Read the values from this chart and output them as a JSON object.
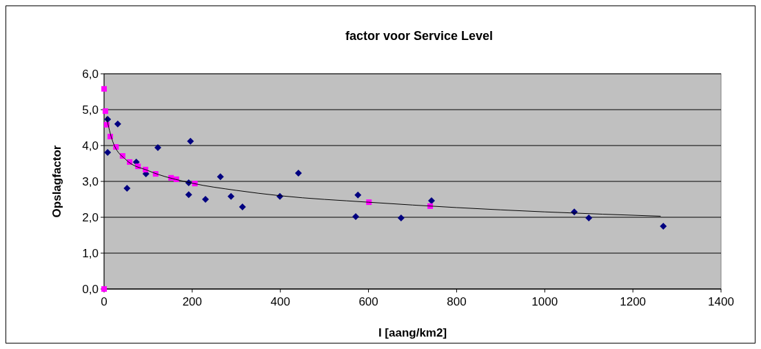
{
  "chart_data": {
    "type": "scatter",
    "title": "factor voor Service Level",
    "xlabel": "I [aang/km2]",
    "ylabel": "Opslagfactor",
    "xlim": [
      0,
      1400
    ],
    "xticks": [
      0,
      200,
      400,
      600,
      800,
      1000,
      1200,
      1400
    ],
    "ylim": [
      0,
      6
    ],
    "yticks": [
      {
        "value": 0,
        "label": "0,0"
      },
      {
        "value": 1,
        "label": "1,0"
      },
      {
        "value": 2,
        "label": "2,0"
      },
      {
        "value": 3,
        "label": "3,0"
      },
      {
        "value": 4,
        "label": "4,0"
      },
      {
        "value": 5,
        "label": "5,0"
      },
      {
        "value": 6,
        "label": "6,0"
      }
    ],
    "grid": "y",
    "series": [
      {
        "color": "#000080",
        "marker": "diamond",
        "x": [
          8,
          8,
          31,
          52,
          73,
          95,
          122,
          196,
          192,
          192,
          230,
          264,
          288,
          314,
          399,
          441,
          576,
          571,
          674,
          743,
          1067,
          1100,
          1269
        ],
        "values": [
          3.81,
          4.73,
          4.6,
          2.81,
          3.54,
          3.21,
          3.94,
          4.12,
          2.96,
          2.63,
          2.5,
          3.13,
          2.58,
          2.29,
          2.58,
          3.23,
          2.62,
          2.02,
          1.98,
          2.46,
          2.15,
          1.98,
          1.75
        ]
      },
      {
        "color": "#ff00ff",
        "marker": "square",
        "x": [
          0,
          0,
          3,
          6,
          14,
          27,
          42,
          58,
          77,
          94,
          117,
          152,
          164,
          206,
          601,
          740
        ],
        "values": [
          5.58,
          0,
          4.96,
          4.58,
          4.25,
          3.96,
          3.71,
          3.54,
          3.42,
          3.33,
          3.21,
          3.1,
          3.06,
          2.94,
          2.42,
          2.31
        ]
      },
      {
        "type": "line",
        "color": "#000000",
        "marker": "none",
        "x": [
          5,
          20,
          50,
          100,
          200,
          300,
          400,
          600,
          800,
          1000,
          1263
        ],
        "values": [
          4.8,
          4.1,
          3.6,
          3.3,
          2.95,
          2.75,
          2.6,
          2.42,
          2.27,
          2.15,
          2.03
        ]
      }
    ]
  }
}
